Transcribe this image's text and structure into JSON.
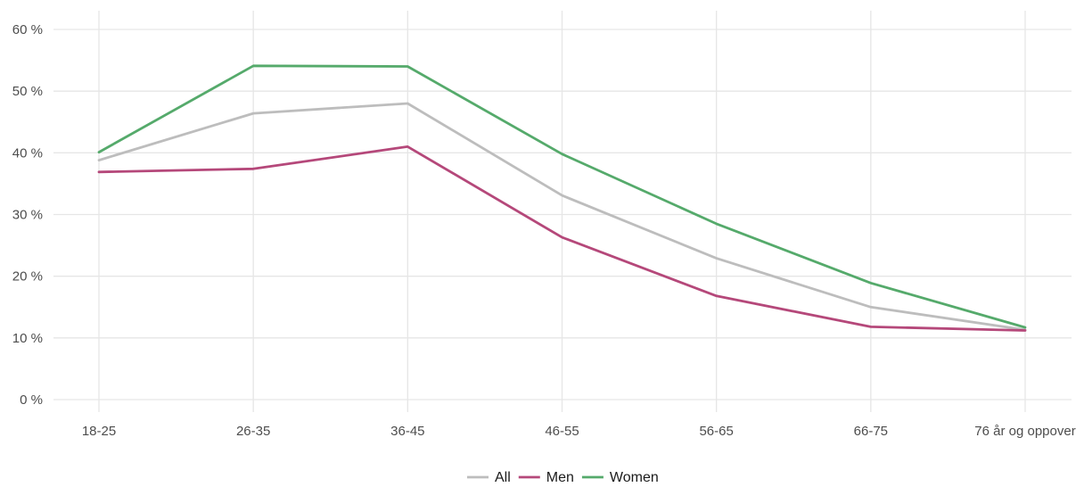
{
  "chart_data": {
    "type": "line",
    "title": "",
    "xlabel": "",
    "ylabel": "",
    "categories": [
      "18-25",
      "26-35",
      "36-45",
      "46-55",
      "56-65",
      "66-75",
      "76 år og oppover"
    ],
    "ylim": [
      0,
      60
    ],
    "yticks": [
      0,
      10,
      20,
      30,
      40,
      50,
      60
    ],
    "ytick_labels": [
      "0 %",
      "10 %",
      "20 %",
      "30 %",
      "40 %",
      "50 %",
      "60 %"
    ],
    "grid": true,
    "legend_position": "bottom",
    "series": [
      {
        "name": "All",
        "color": "#bdbdbd",
        "values": [
          38.8,
          46.4,
          48.0,
          33.1,
          22.9,
          15.0,
          11.3
        ]
      },
      {
        "name": "Men",
        "color": "#b5487a",
        "values": [
          36.9,
          37.4,
          41.0,
          26.3,
          16.8,
          11.8,
          11.2
        ]
      },
      {
        "name": "Women",
        "color": "#55aa6b",
        "values": [
          40.1,
          54.1,
          54.0,
          39.8,
          28.5,
          18.9,
          11.7
        ]
      }
    ]
  }
}
